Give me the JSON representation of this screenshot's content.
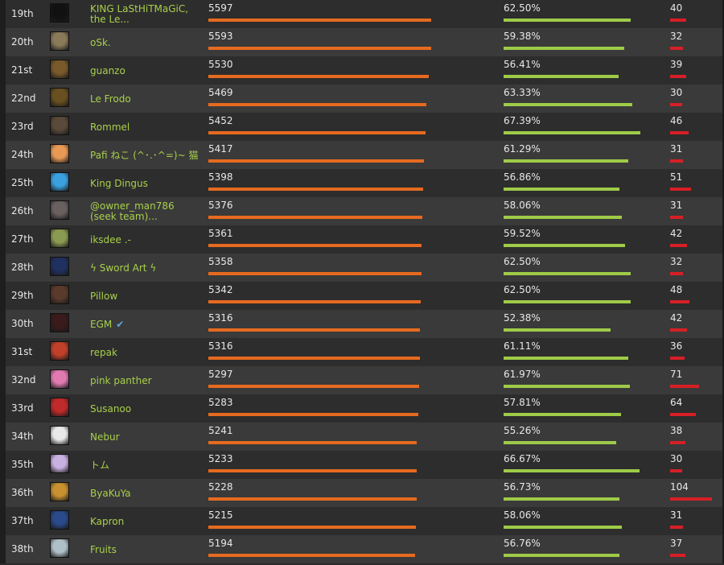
{
  "colors": {
    "score_bar": "#e66a1f",
    "winrate_bar": "#9ecb48",
    "games_bar": "#d61f26",
    "name_link": "#a8d04b",
    "verified_check": "#5aa9e6"
  },
  "leaderboard": {
    "rows": [
      {
        "rank": "19th",
        "name": "KING LaStHiTMaGiC, the Le...",
        "score": "5597",
        "winrate": "62.50%",
        "games": "40",
        "avatar": "dark-circle-icon",
        "avatar_color": "#111111"
      },
      {
        "rank": "20th",
        "name": "oSk.",
        "score": "5593",
        "winrate": "59.38%",
        "games": "32",
        "avatar": "portrait-icon",
        "avatar_color": "#8a7a5a"
      },
      {
        "rank": "21st",
        "name": "guanzo",
        "score": "5530",
        "winrate": "56.41%",
        "games": "39",
        "avatar": "dog-icon",
        "avatar_color": "#7a5a2a"
      },
      {
        "rank": "22nd",
        "name": "Le Frodo",
        "score": "5469",
        "winrate": "63.33%",
        "games": "30",
        "avatar": "portrait-icon",
        "avatar_color": "#6a5020"
      },
      {
        "rank": "23rd",
        "name": "Rommel",
        "score": "5452",
        "winrate": "67.39%",
        "games": "46",
        "avatar": "portrait-icon",
        "avatar_color": "#5a4a3a"
      },
      {
        "rank": "24th",
        "name": "Pafi ねこ (^･.･^=)~ 猫",
        "score": "5417",
        "winrate": "61.29%",
        "games": "31",
        "avatar": "anime-icon",
        "avatar_color": "#e89a55"
      },
      {
        "rank": "25th",
        "name": "King Dingus",
        "score": "5398",
        "winrate": "56.86%",
        "games": "51",
        "avatar": "rainbow-cat-icon",
        "avatar_color": "#3aa0e0"
      },
      {
        "rank": "26th",
        "name": "@owner_man786 (seek team)...",
        "score": "5376",
        "winrate": "58.06%",
        "games": "31",
        "avatar": "portrait-icon",
        "avatar_color": "#6a6060"
      },
      {
        "rank": "27th",
        "name": "iksdee .-",
        "score": "5361",
        "winrate": "59.52%",
        "games": "42",
        "avatar": "frog-icon",
        "avatar_color": "#8a9a50"
      },
      {
        "rank": "28th",
        "name": "ϟ Sword Art ϟ",
        "score": "5358",
        "winrate": "62.50%",
        "games": "32",
        "avatar": "anime-icon",
        "avatar_color": "#203060"
      },
      {
        "rank": "29th",
        "name": "Pillow",
        "score": "5342",
        "winrate": "62.50%",
        "games": "48",
        "avatar": "building-icon",
        "avatar_color": "#5a3a2a"
      },
      {
        "rank": "30th",
        "name": "EGM",
        "verified": true,
        "score": "5316",
        "winrate": "52.38%",
        "games": "42",
        "avatar": "dark-figure-icon",
        "avatar_color": "#3a1a1a"
      },
      {
        "rank": "31st",
        "name": "repak",
        "score": "5316",
        "winrate": "61.11%",
        "games": "36",
        "avatar": "character-icon",
        "avatar_color": "#c0402a"
      },
      {
        "rank": "32nd",
        "name": "pink panther",
        "score": "5297",
        "winrate": "61.97%",
        "games": "71",
        "avatar": "panther-icon",
        "avatar_color": "#e07ab0"
      },
      {
        "rank": "33rd",
        "name": "Susanoo",
        "score": "5283",
        "winrate": "57.81%",
        "games": "64",
        "avatar": "emblem-icon",
        "avatar_color": "#c02a2a"
      },
      {
        "rank": "34th",
        "name": "Nebur",
        "score": "5241",
        "winrate": "55.26%",
        "games": "38",
        "avatar": "swirl-icon",
        "avatar_color": "#e8e8e8"
      },
      {
        "rank": "35th",
        "name": "トム",
        "score": "5233",
        "winrate": "66.67%",
        "games": "30",
        "avatar": "anime-icon",
        "avatar_color": "#c8b0e0"
      },
      {
        "rank": "36th",
        "name": "ByaKuYa",
        "score": "5228",
        "winrate": "56.73%",
        "games": "104",
        "avatar": "anime-icon",
        "avatar_color": "#c89030"
      },
      {
        "rank": "37th",
        "name": "Kapron",
        "score": "5215",
        "winrate": "58.06%",
        "games": "31",
        "avatar": "portrait-icon",
        "avatar_color": "#2a4a8a"
      },
      {
        "rank": "38th",
        "name": "Fruits",
        "score": "5194",
        "winrate": "56.76%",
        "games": "37",
        "avatar": "ghost-icon",
        "avatar_color": "#b0c0c8"
      }
    ]
  }
}
